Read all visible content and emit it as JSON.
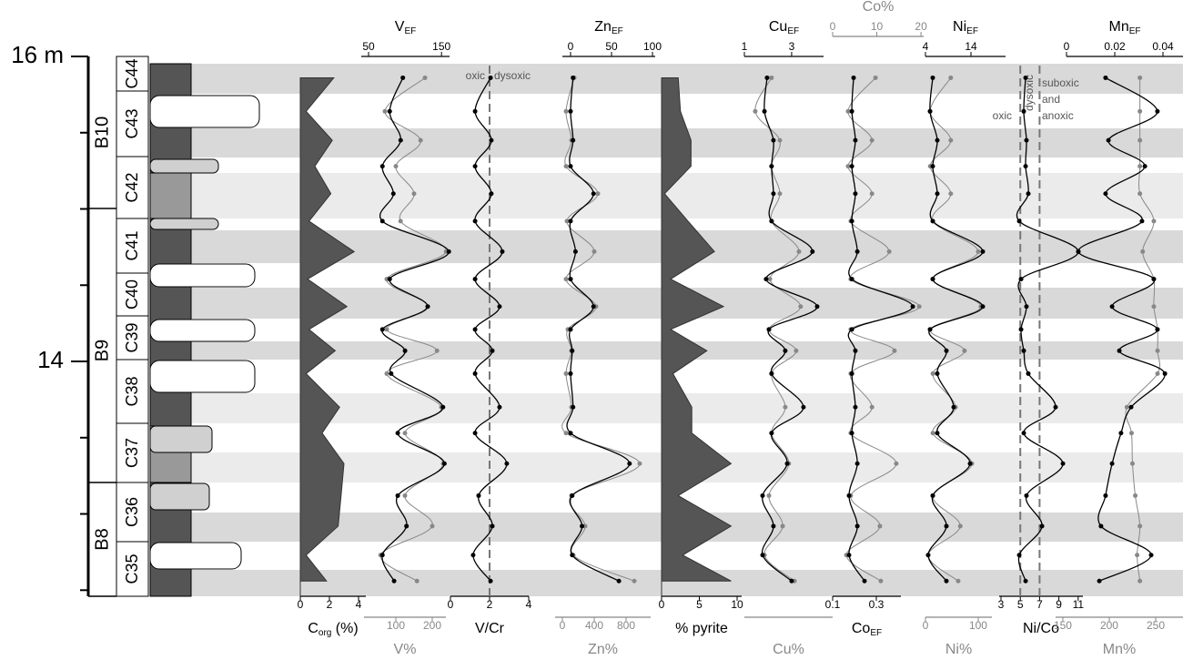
{
  "depth": {
    "values": [
      15.86,
      15.64,
      15.45,
      15.28,
      15.1,
      14.92,
      14.72,
      14.54,
      14.36,
      14.21,
      14.07,
      13.92,
      13.7,
      13.53,
      13.33,
      13.12,
      12.92,
      12.73,
      12.56
    ],
    "ylim": [
      12.46,
      16
    ],
    "yticks": [
      {
        "value": 16,
        "label": "16 m"
      },
      14
    ],
    "minor_ticks": [
      15.5,
      15,
      14.5,
      13.5,
      13,
      12.5
    ]
  },
  "lithology": {
    "units": [
      "C44",
      "C43",
      "C42",
      "C41",
      "C40",
      "C39",
      "C38",
      "C37",
      "C36",
      "C35"
    ],
    "beds": [
      "B10",
      "B9",
      "B8"
    ]
  },
  "chart_data": [
    {
      "type": "area",
      "axes": {
        "bottom": {
          "color": "#000",
          "xlim": [
            0,
            4.5
          ],
          "xticks": [
            0,
            2,
            4
          ],
          "title": {
            "text": "C",
            "sub": "org",
            "after": " (%)"
          }
        }
      },
      "series": [
        {
          "color": "#555",
          "axis": "bottom",
          "values": [
            2.3,
            0.4,
            2.2,
            1.0,
            2.1,
            0.6,
            3.7,
            0.5,
            3.2,
            0.6,
            2.4,
            0.4,
            2.7,
            1.5,
            3.0,
            2.8,
            2.6,
            0.4,
            1.8
          ]
        }
      ]
    },
    {
      "type": "line",
      "axes": {
        "top": {
          "color": "#000",
          "xlim": [
            40,
            161
          ],
          "xticks": [
            50,
            150
          ],
          "title": {
            "text": "V",
            "sub": "EF"
          }
        },
        "bottom": {
          "color": "#888",
          "xlim": [
            12.5,
            237.5
          ],
          "xticks": [
            100,
            200
          ],
          "title": {
            "text": "V%"
          }
        }
      },
      "series": [
        {
          "color": "#888",
          "axis": "bottom",
          "values": [
            180,
            70,
            168,
            100,
            150,
            113,
            238,
            75,
            188,
            75,
            213,
            75,
            225,
            125,
            230,
            125,
            200,
            58,
            158
          ]
        },
        {
          "color": "#000",
          "axis": "top",
          "values": [
            97,
            79,
            94,
            69,
            84,
            69,
            160,
            79,
            131,
            69,
            100,
            81,
            152,
            90,
            154,
            90,
            102,
            69,
            85
          ]
        }
      ]
    },
    {
      "type": "line",
      "axes": {
        "bottom": {
          "color": "#000",
          "xlim": [
            0,
            4
          ],
          "xticks": [
            0,
            2,
            4
          ],
          "title": {
            "text": "V/Cr"
          }
        }
      },
      "thresholds": [
        2
      ],
      "annotations": [
        "oxic",
        "dysoxic"
      ],
      "series": [
        {
          "color": "#000",
          "axis": "bottom",
          "values": [
            2.05,
            1.26,
            2.09,
            1.26,
            2.09,
            1.26,
            2.65,
            1.26,
            2.51,
            1.26,
            2.14,
            1.26,
            2.51,
            1.26,
            2.88,
            1.44,
            2.14,
            1.16,
            2.05
          ]
        }
      ]
    },
    {
      "type": "line",
      "axes": {
        "top": {
          "color": "#000",
          "xlim": [
            -10,
            103.3
          ],
          "xticks": [
            0,
            50,
            100
          ],
          "title": {
            "text": "Zn",
            "sub": "EF"
          }
        },
        "bottom": {
          "color": "#888",
          "xlim": [
            -91.4,
            1108.6
          ],
          "xticks": [
            0,
            400,
            800
          ],
          "title": {
            "text": "Zn%"
          }
        }
      },
      "series": [
        {
          "color": "#888",
          "axis": "bottom",
          "values": [
            149,
            46,
            114,
            46,
            446,
            57,
            400,
            46,
            423,
            69,
            114,
            46,
            114,
            46,
            971,
            114,
            286,
            137,
            903
          ]
        },
        {
          "color": "#000",
          "axis": "top",
          "values": [
            3,
            0,
            3,
            0,
            28,
            0,
            6,
            0,
            28,
            0,
            2,
            0,
            3,
            0,
            72,
            2,
            14,
            2,
            59
          ]
        }
      ]
    },
    {
      "type": "area",
      "axes": {
        "bottom": {
          "color": "#000",
          "xlim": [
            0,
            10.6
          ],
          "xticks": [
            0,
            5,
            10
          ],
          "title": {
            "text": "% pyrite"
          }
        }
      },
      "series": [
        {
          "color": "#555",
          "axis": "bottom",
          "values": [
            2.2,
            2.5,
            3.9,
            3.9,
            0.4,
            3.5,
            7.0,
            1.2,
            8.2,
            1.2,
            6.0,
            1.5,
            4.0,
            4.0,
            9.2,
            2.2,
            9.2,
            2.8,
            9.2
          ]
        }
      ]
    },
    {
      "type": "line",
      "axes": {
        "top": {
          "color": "#000",
          "xlim": [
            1,
            4.35
          ],
          "xticks": [
            1,
            3
          ],
          "title": {
            "text": "Cu",
            "sub": "EF"
          }
        },
        "bottom": {
          "color": "#888",
          "title": {
            "text": "Cu%"
          }
        }
      },
      "series": [
        {
          "color": "#888",
          "axis": "top",
          "values": [
            2.15,
            1.46,
            2.5,
            2.15,
            2.5,
            2.15,
            3.31,
            2.08,
            3.38,
            2.04,
            3.19,
            2.15,
            2.73,
            2.15,
            2.88,
            2.04,
            2.62,
            1.85,
            3.12
          ]
        },
        {
          "color": "#000",
          "axis": "top",
          "values": [
            1.96,
            1.85,
            2.23,
            2.15,
            2.23,
            2.15,
            3.88,
            1.92,
            4.08,
            2.04,
            2.73,
            2.15,
            3.5,
            2.15,
            2.81,
            1.77,
            2.23,
            1.77,
            3.0
          ]
        }
      ]
    },
    {
      "type": "line",
      "axes": {
        "top": {
          "color": "#888",
          "xlim": [
            0,
            20.6
          ],
          "xticks": [
            0,
            10,
            20
          ],
          "title": {
            "text": "Co%"
          }
        },
        "bottom": {
          "color": "#000",
          "xlim": [
            0.1,
            0.4125
          ],
          "xticks": [
            0.1,
            0.3
          ],
          "title": {
            "text": "Co",
            "sub": "EF"
          }
        }
      },
      "series": [
        {
          "color": "#888",
          "axis": "top",
          "values": [
            9.7,
            3.5,
            8.9,
            3.5,
            8.9,
            4.1,
            12.8,
            4.1,
            19.6,
            4.1,
            14.0,
            4.1,
            8.9,
            4.1,
            14.4,
            4.1,
            10.7,
            3.1,
            10.9
          ]
        },
        {
          "color": "#000",
          "axis": "bottom",
          "values": [
            0.196,
            0.188,
            0.204,
            0.188,
            0.204,
            0.188,
            0.213,
            0.188,
            0.467,
            0.188,
            0.204,
            0.188,
            0.204,
            0.188,
            0.213,
            0.175,
            0.213,
            0.175,
            0.246
          ]
        }
      ]
    },
    {
      "type": "line",
      "axes": {
        "top": {
          "color": "#000",
          "xlim": [
            4,
            21.6
          ],
          "xticks": [
            4,
            14
          ],
          "title": {
            "text": "Ni",
            "sub": "EF"
          }
        },
        "bottom": {
          "color": "#888",
          "xlim": [
            0,
            125.9
          ],
          "xticks": [
            0,
            100
          ],
          "title": {
            "text": "Ni%"
          }
        }
      },
      "series": [
        {
          "color": "#888",
          "axis": "bottom",
          "values": [
            48,
            9,
            48,
            9,
            48,
            14,
            100,
            14,
            105,
            9,
            74,
            14,
            57,
            14,
            88,
            14,
            66,
            5,
            62
          ]
        },
        {
          "color": "#000",
          "axis": "top",
          "values": [
            5.6,
            5,
            6.6,
            5.6,
            6.6,
            5.6,
            16.6,
            5.6,
            16.6,
            5,
            8.6,
            6.6,
            10.2,
            6.6,
            13.8,
            5.6,
            8.6,
            4.6,
            8.6
          ]
        }
      ]
    },
    {
      "type": "line",
      "axes": {
        "bottom": {
          "color": "#000",
          "xlim": [
            2.81,
            11.49
          ],
          "xticks": [
            3,
            5,
            7,
            9,
            11
          ],
          "title": {
            "text": "Ni/Co"
          }
        }
      },
      "thresholds": [
        5,
        7
      ],
      "annotations": [
        "oxic",
        "dysoxic",
        "suboxic",
        "and",
        "anoxic"
      ],
      "series": [
        {
          "color": "#000",
          "axis": "bottom",
          "values": [
            5.55,
            5.36,
            5.64,
            5.55,
            5.83,
            4.89,
            11.02,
            5.08,
            5.64,
            5.08,
            5.36,
            5.83,
            8.66,
            5.36,
            9.42,
            5.64,
            7.25,
            4.89,
            5.55
          ]
        }
      ]
    },
    {
      "type": "line",
      "axes": {
        "top": {
          "color": "#000",
          "xlim": [
            0,
            0.0483
          ],
          "xticks": [
            0,
            0.02,
            0.04
          ],
          "title": {
            "text": "Mn",
            "sub": "EF"
          }
        },
        "bottom": {
          "color": "#888",
          "xlim": [
            142.2,
            279.4
          ],
          "xticks": [
            150,
            200,
            250
          ],
          "title": {
            "text": "Mn%"
          }
        }
      },
      "series": [
        {
          "color": "#888",
          "axis": "bottom",
          "values": [
            233,
            233,
            233,
            233,
            233,
            248,
            236,
            248,
            248,
            252,
            252,
            252,
            219,
            224,
            225,
            228,
            233,
            230,
            233
          ]
        },
        {
          "color": "#000",
          "axis": "top",
          "values": [
            0.0162,
            0.0377,
            0.0174,
            0.0325,
            0.0162,
            0.0313,
            0.0049,
            0.0362,
            0.0189,
            0.0377,
            0.0219,
            0.0408,
            0.0268,
            0.0226,
            0.0189,
            0.0162,
            0.0143,
            0.0351,
            0.0136
          ]
        }
      ]
    }
  ]
}
